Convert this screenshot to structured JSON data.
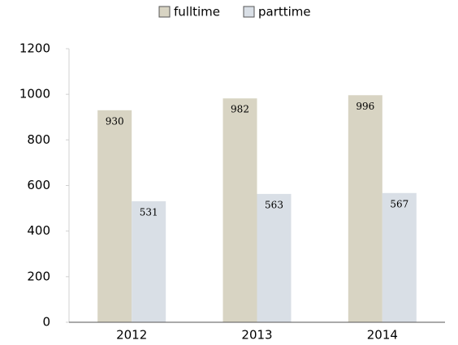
{
  "chart_data": {
    "type": "bar",
    "categories": [
      "2012",
      "2013",
      "2014"
    ],
    "series": [
      {
        "name": "fulltime",
        "color": "#d8d4c3",
        "values": [
          930,
          982,
          996
        ]
      },
      {
        "name": "parttime",
        "color": "#d9dfe6",
        "values": [
          531,
          563,
          567
        ]
      }
    ],
    "ylim": [
      0,
      1200
    ],
    "yticks": [
      0,
      200,
      400,
      600,
      800,
      1000,
      1200
    ],
    "grid": false,
    "legend": "top"
  }
}
